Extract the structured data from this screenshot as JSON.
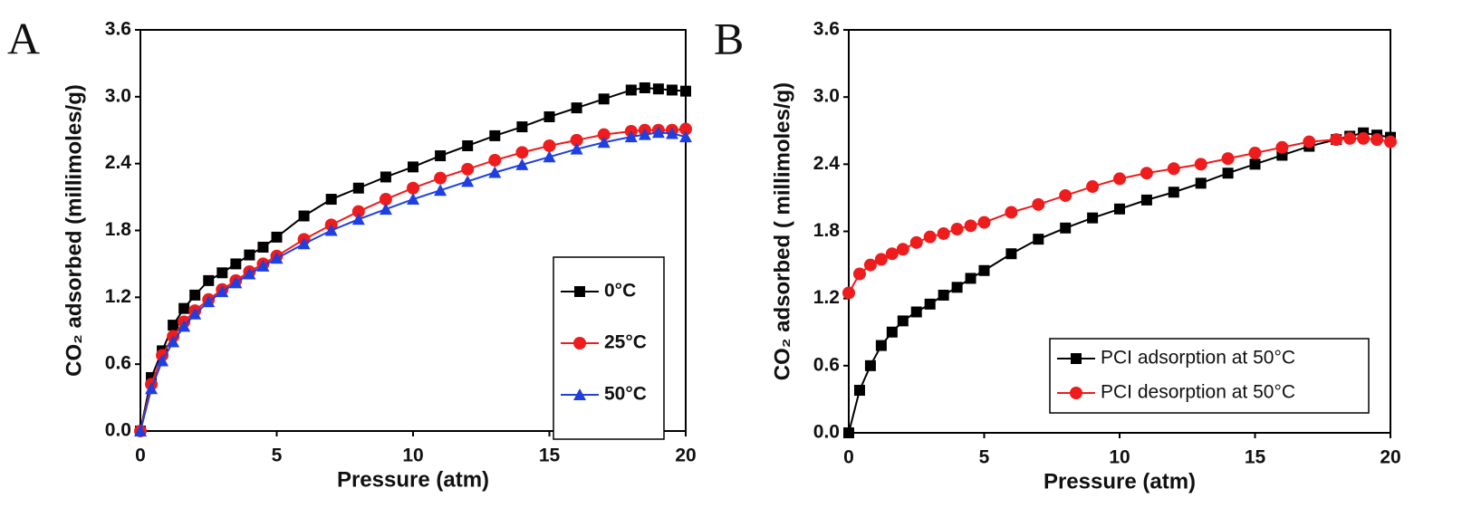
{
  "chart_data": [
    {
      "type": "line",
      "panel": "A",
      "xlabel": "Pressure (atm)",
      "ylabel": "CO₂ adsorbed (millimoles/g)",
      "x": [
        0,
        0.4,
        0.8,
        1.2,
        1.6,
        2,
        2.5,
        3,
        3.5,
        4,
        4.5,
        5,
        6,
        7,
        8,
        9,
        10,
        11,
        12,
        13,
        14,
        15,
        16,
        17,
        18,
        18.5,
        19,
        19.5,
        20
      ],
      "series": [
        {
          "name": "0°C",
          "color": "#000000",
          "marker": "square",
          "values": [
            0,
            0.48,
            0.72,
            0.95,
            1.1,
            1.22,
            1.35,
            1.42,
            1.5,
            1.58,
            1.65,
            1.74,
            1.93,
            2.08,
            2.18,
            2.28,
            2.37,
            2.47,
            2.56,
            2.65,
            2.73,
            2.82,
            2.9,
            2.98,
            3.06,
            3.08,
            3.07,
            3.06,
            3.05
          ]
        },
        {
          "name": "25°C",
          "color": "#ee1c1c",
          "marker": "circle",
          "values": [
            0,
            0.42,
            0.68,
            0.85,
            0.98,
            1.08,
            1.18,
            1.27,
            1.35,
            1.43,
            1.5,
            1.57,
            1.72,
            1.85,
            1.97,
            2.08,
            2.18,
            2.27,
            2.35,
            2.43,
            2.5,
            2.56,
            2.61,
            2.66,
            2.69,
            2.7,
            2.7,
            2.7,
            2.71
          ]
        },
        {
          "name": "50°C",
          "color": "#1f3fe0",
          "marker": "triangle",
          "values": [
            0,
            0.38,
            0.63,
            0.8,
            0.94,
            1.05,
            1.16,
            1.25,
            1.33,
            1.41,
            1.48,
            1.55,
            1.68,
            1.8,
            1.9,
            1.99,
            2.08,
            2.16,
            2.24,
            2.32,
            2.39,
            2.46,
            2.53,
            2.59,
            2.64,
            2.66,
            2.68,
            2.67,
            2.64
          ]
        }
      ],
      "xlim": [
        0,
        20
      ],
      "xticks": [
        0,
        5,
        10,
        15,
        20
      ],
      "ylim": [
        0,
        3.6
      ],
      "yticks": [
        {
          "value": 0,
          "label": "0.0"
        },
        0.6,
        1.2,
        1.8,
        2.4,
        {
          "value": 3,
          "label": "3.0"
        },
        3.6
      ],
      "legend": "center right"
    },
    {
      "type": "line",
      "panel": "B",
      "xlabel": "Pressure (atm)",
      "ylabel": "CO₂ adsorbed ( millimoles/g)",
      "x": [
        0,
        0.4,
        0.8,
        1.2,
        1.6,
        2,
        2.5,
        3,
        3.5,
        4,
        4.5,
        5,
        6,
        7,
        8,
        9,
        10,
        11,
        12,
        13,
        14,
        15,
        16,
        17,
        18,
        18.5,
        19,
        19.5,
        20
      ],
      "series": [
        {
          "name": "PCI adsorption at 50°C",
          "color": "#000000",
          "marker": "square",
          "values": [
            0,
            0.38,
            0.6,
            0.78,
            0.9,
            1.0,
            1.08,
            1.15,
            1.23,
            1.3,
            1.38,
            1.45,
            1.6,
            1.73,
            1.83,
            1.92,
            2.0,
            2.08,
            2.15,
            2.23,
            2.32,
            2.4,
            2.48,
            2.56,
            2.62,
            2.65,
            2.68,
            2.66,
            2.64
          ]
        },
        {
          "name": "PCI desorption at 50°C",
          "color": "#ee1c1c",
          "marker": "circle",
          "values": [
            1.25,
            1.42,
            1.5,
            1.55,
            1.6,
            1.64,
            1.7,
            1.75,
            1.78,
            1.82,
            1.85,
            1.88,
            1.97,
            2.04,
            2.12,
            2.2,
            2.27,
            2.32,
            2.36,
            2.4,
            2.45,
            2.5,
            2.55,
            2.6,
            2.62,
            2.63,
            2.63,
            2.62,
            2.6
          ]
        }
      ],
      "xlim": [
        0,
        20
      ],
      "xticks": [
        0,
        5,
        10,
        15,
        20
      ],
      "ylim": [
        0,
        3.6
      ],
      "yticks": [
        {
          "value": 0,
          "label": "0.0"
        },
        0.6,
        1.2,
        1.8,
        2.4,
        {
          "value": 3,
          "label": "3.0"
        },
        3.6
      ],
      "legend": "lower right"
    }
  ]
}
